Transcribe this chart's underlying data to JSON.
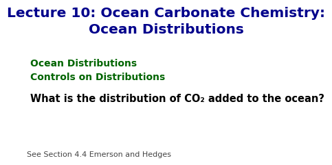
{
  "background_color": "#ffffff",
  "title_line1": "Lecture 10: Ocean Carbonate Chemistry:",
  "title_line2": "Ocean Distributions",
  "title_color": "#00008B",
  "title_fontsize": 14.5,
  "bullet1": "Ocean Distributions",
  "bullet2": "Controls on Distributions",
  "bullet_color": "#006400",
  "bullet_fontsize": 10,
  "question_pre": "What is the distribution of CO",
  "question_sub": "₂",
  "question_post": " added to the ocean?",
  "question_color": "#000000",
  "question_fontsize": 10.5,
  "footnote": "See Section 4.4 Emerson and Hedges",
  "footnote_color": "#444444",
  "footnote_fontsize": 8.0
}
